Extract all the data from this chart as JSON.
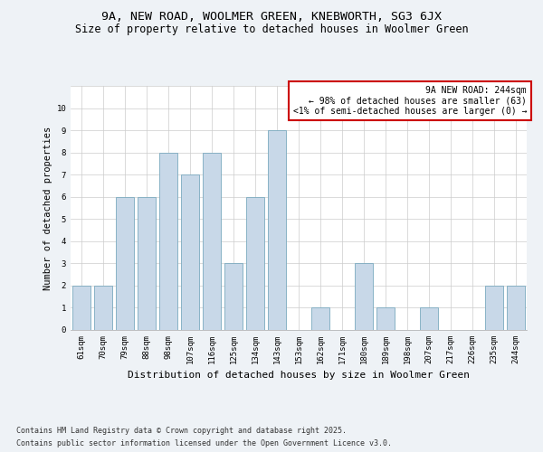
{
  "title": "9A, NEW ROAD, WOOLMER GREEN, KNEBWORTH, SG3 6JX",
  "subtitle": "Size of property relative to detached houses in Woolmer Green",
  "xlabel": "Distribution of detached houses by size in Woolmer Green",
  "ylabel": "Number of detached properties",
  "categories": [
    "61sqm",
    "70sqm",
    "79sqm",
    "88sqm",
    "98sqm",
    "107sqm",
    "116sqm",
    "125sqm",
    "134sqm",
    "143sqm",
    "153sqm",
    "162sqm",
    "171sqm",
    "180sqm",
    "189sqm",
    "198sqm",
    "207sqm",
    "217sqm",
    "226sqm",
    "235sqm",
    "244sqm"
  ],
  "values": [
    2,
    2,
    6,
    6,
    8,
    7,
    8,
    3,
    6,
    9,
    0,
    1,
    0,
    3,
    1,
    0,
    1,
    0,
    0,
    2,
    2
  ],
  "bar_color": "#c8d8e8",
  "bar_edge_color": "#7aaabf",
  "background_color": "#eef2f6",
  "plot_bg_color": "#ffffff",
  "ylim": [
    0,
    11
  ],
  "yticks": [
    0,
    1,
    2,
    3,
    4,
    5,
    6,
    7,
    8,
    9,
    10,
    11
  ],
  "grid_color": "#cccccc",
  "annotation_box_text": "9A NEW ROAD: 244sqm\n← 98% of detached houses are smaller (63)\n<1% of semi-detached houses are larger (0) →",
  "annotation_box_edge_color": "#cc0000",
  "annotation_fontsize": 7.0,
  "title_fontsize": 9.5,
  "subtitle_fontsize": 8.5,
  "xlabel_fontsize": 8.0,
  "ylabel_fontsize": 7.5,
  "tick_fontsize": 6.5,
  "footer_line1": "Contains HM Land Registry data © Crown copyright and database right 2025.",
  "footer_line2": "Contains public sector information licensed under the Open Government Licence v3.0.",
  "footer_fontsize": 6.0
}
